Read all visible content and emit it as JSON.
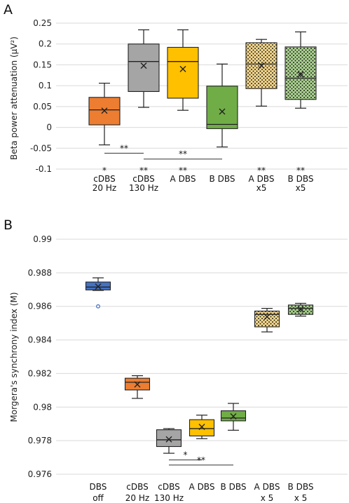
{
  "chart_data": [
    {
      "type": "boxplot",
      "panel_label": "A",
      "ylabel": "Beta power attenuation (µV²)",
      "ylim": [
        -0.1,
        0.25
      ],
      "yticks": [
        "0.25",
        "0.2",
        "0.15",
        "0.1",
        "0.05",
        "0",
        "-0.05",
        "-0.1"
      ],
      "ytick_values": [
        0.25,
        0.2,
        0.15,
        0.1,
        0.05,
        0,
        -0.05,
        -0.1
      ],
      "grid": true,
      "categories": [
        {
          "label": [
            "cDBS",
            "20 Hz"
          ],
          "sig": "*"
        },
        {
          "label": [
            "cDBS",
            "130 Hz"
          ],
          "sig": "**"
        },
        {
          "label": [
            "A DBS"
          ],
          "sig": "**"
        },
        {
          "label": [
            "B DBS"
          ],
          "sig": ""
        },
        {
          "label": [
            "A DBS",
            "x5"
          ],
          "sig": "**"
        },
        {
          "label": [
            "B DBS",
            "x5"
          ],
          "sig": "**"
        }
      ],
      "boxes": [
        {
          "min": -0.042,
          "q1": 0.006,
          "median": 0.042,
          "q3": 0.072,
          "max": 0.106,
          "mean": 0.04,
          "color": "#ED7D31",
          "pattern": false
        },
        {
          "min": 0.048,
          "q1": 0.086,
          "median": 0.158,
          "q3": 0.2,
          "max": 0.234,
          "mean": 0.148,
          "color": "#A5A5A5",
          "pattern": false
        },
        {
          "min": 0.041,
          "q1": 0.07,
          "median": 0.158,
          "q3": 0.192,
          "max": 0.234,
          "mean": 0.14,
          "color": "#FFC000",
          "pattern": false
        },
        {
          "min": -0.047,
          "q1": -0.003,
          "median": 0.007,
          "q3": 0.099,
          "max": 0.152,
          "mean": 0.038,
          "color": "#70AD47",
          "pattern": false
        },
        {
          "min": 0.051,
          "q1": 0.093,
          "median": 0.152,
          "q3": 0.203,
          "max": 0.211,
          "mean": 0.148,
          "color": "#F6D78A",
          "pattern": true
        },
        {
          "min": 0.046,
          "q1": 0.067,
          "median": 0.118,
          "q3": 0.193,
          "max": 0.229,
          "mean": 0.127,
          "color": "#A9D18E",
          "pattern": true
        }
      ],
      "brackets": [
        {
          "from": 0,
          "to": 1,
          "y": -0.062,
          "label": "**"
        },
        {
          "from": 1,
          "to": 3,
          "y": -0.076,
          "label": "**"
        }
      ]
    },
    {
      "type": "boxplot",
      "panel_label": "B",
      "ylabel": "Morgera's synchrony index (M)",
      "ylim": [
        0.976,
        0.99
      ],
      "yticks": [
        "0.99",
        "0.988",
        "0.986",
        "0.984",
        "0.982",
        "0.98",
        "0.978",
        "0.976"
      ],
      "ytick_values": [
        0.99,
        0.988,
        0.986,
        0.984,
        0.982,
        0.98,
        0.978,
        0.976
      ],
      "grid": true,
      "categories": [
        {
          "label": [
            "DBS",
            "off"
          ],
          "sig": ""
        },
        {
          "label": [
            "cDBS",
            "20 Hz"
          ],
          "sig": ""
        },
        {
          "label": [
            "cDBS",
            "130 Hz"
          ],
          "sig": ""
        },
        {
          "label": [
            "A DBS"
          ],
          "sig": ""
        },
        {
          "label": [
            "B DBS"
          ],
          "sig": ""
        },
        {
          "label": [
            "A DBS",
            "x 5"
          ],
          "sig": ""
        },
        {
          "label": [
            "B DBS",
            "x 5"
          ],
          "sig": ""
        }
      ],
      "boxes": [
        {
          "min": 0.98695,
          "q1": 0.98698,
          "median": 0.98715,
          "q3": 0.98745,
          "max": 0.9877,
          "mean": 0.98718,
          "outliers": [
            0.986
          ],
          "color": "#4472C4",
          "pattern": false
        },
        {
          "min": 0.98052,
          "q1": 0.98102,
          "median": 0.98148,
          "q3": 0.98172,
          "max": 0.98187,
          "mean": 0.98135,
          "color": "#ED7D31",
          "pattern": false
        },
        {
          "min": 0.97725,
          "q1": 0.97765,
          "median": 0.97805,
          "q3": 0.97865,
          "max": 0.97872,
          "mean": 0.97808,
          "color": "#A5A5A5",
          "pattern": false
        },
        {
          "min": 0.97812,
          "q1": 0.97828,
          "median": 0.97872,
          "q3": 0.97925,
          "max": 0.97952,
          "mean": 0.97882,
          "color": "#FFC000",
          "pattern": false
        },
        {
          "min": 0.97862,
          "q1": 0.97918,
          "median": 0.97935,
          "q3": 0.97978,
          "max": 0.98022,
          "mean": 0.97945,
          "color": "#70AD47",
          "pattern": false
        },
        {
          "min": 0.98448,
          "q1": 0.98478,
          "median": 0.98552,
          "q3": 0.98572,
          "max": 0.98588,
          "mean": 0.98538,
          "color": "#F6D78A",
          "pattern": true
        },
        {
          "min": 0.98542,
          "q1": 0.98552,
          "median": 0.98588,
          "q3": 0.98608,
          "max": 0.98618,
          "mean": 0.98582,
          "color": "#A9D18E",
          "pattern": true
        }
      ],
      "brackets": [
        {
          "from": 2,
          "to": 3,
          "y": 0.97685,
          "label": "*"
        },
        {
          "from": 2,
          "to": 4,
          "y": 0.97655,
          "label": "**"
        }
      ]
    }
  ]
}
